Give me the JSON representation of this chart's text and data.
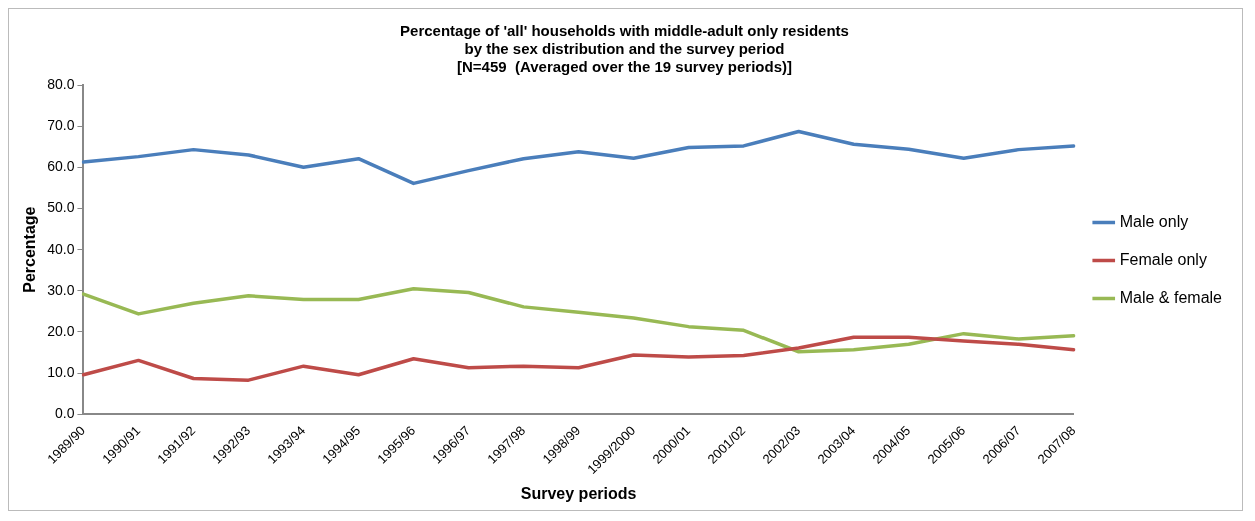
{
  "chart_data": {
    "type": "line",
    "title": "Percentage of 'all' households with middle-adult only residents\nby the sex distribution and the survey period\n[N=459  (Averaged over the 19 survey periods)]",
    "xlabel": "Survey periods",
    "ylabel": "Percentage",
    "categories": [
      "1989/90",
      "1990/91",
      "1991/92",
      "1992/93",
      "1993/94",
      "1994/95",
      "1995/96",
      "1996/97",
      "1997/98",
      "1998/99",
      "1999/2000",
      "2000/01",
      "2001/02",
      "2002/03",
      "2003/04",
      "2004/05",
      "2005/06",
      "2006/07",
      "2007/08"
    ],
    "series": [
      {
        "name": "Male only",
        "color": "#4a7ebb",
        "values": [
          61.3,
          62.6,
          64.3,
          63.0,
          60.0,
          62.1,
          56.1,
          59.2,
          62.1,
          63.8,
          62.2,
          64.8,
          65.2,
          68.7,
          65.6,
          64.4,
          62.2,
          64.3,
          65.2
        ]
      },
      {
        "name": "Female only",
        "color": "#be4b48",
        "values": [
          9.6,
          13.1,
          8.7,
          8.3,
          11.7,
          9.6,
          13.5,
          11.3,
          11.7,
          11.3,
          14.4,
          13.9,
          14.3,
          16.1,
          18.7,
          18.7,
          17.8,
          17.0,
          15.7
        ]
      },
      {
        "name": "Male & female",
        "color": "#98b954",
        "values": [
          29.2,
          24.4,
          27.0,
          28.8,
          27.9,
          27.9,
          30.5,
          29.6,
          26.1,
          24.8,
          23.4,
          21.3,
          20.4,
          15.2,
          15.7,
          17.0,
          19.6,
          18.3,
          19.1
        ]
      }
    ],
    "ylim": [
      0,
      80
    ],
    "yticks": [
      {
        "value": 0,
        "label": "0.0"
      },
      {
        "value": 10,
        "label": "10.0"
      },
      {
        "value": 20,
        "label": "20.0"
      },
      {
        "value": 30,
        "label": "30.0"
      },
      {
        "value": 40,
        "label": "40.0"
      },
      {
        "value": 50,
        "label": "50.0"
      },
      {
        "value": 60,
        "label": "60.0"
      },
      {
        "value": 70,
        "label": "70.0"
      },
      {
        "value": 80,
        "label": "80.0"
      }
    ],
    "grid": false,
    "legend": "right",
    "marker": "none",
    "line_style": "solid"
  }
}
